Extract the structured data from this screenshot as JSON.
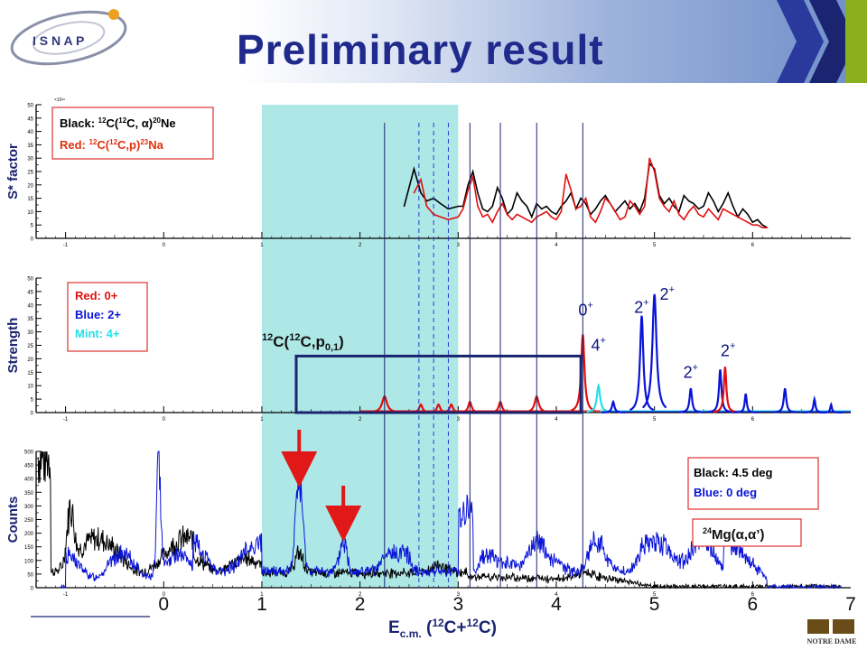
{
  "slide": {
    "title": "Preliminary result",
    "logo_text": "I S N A P"
  },
  "colors": {
    "mint_band": "#aee8e6",
    "black": "#000000",
    "red": "#e01010",
    "blue": "#0a14d8",
    "mint": "#24e0e8",
    "navy": "#1a2470",
    "annotation_red": "#e01818"
  },
  "chart_data": [
    {
      "type": "line",
      "panel": "S* factor",
      "ylabel": "S* factor",
      "y_exponent_label": "×10¹⁶",
      "xlim": [
        -1.3,
        7
      ],
      "ylim": [
        0,
        50
      ],
      "x_ticks": [
        -1,
        0,
        1,
        2,
        3,
        4,
        5,
        6
      ],
      "y_ticks": [
        0,
        5,
        10,
        15,
        20,
        25,
        30,
        35,
        40,
        45,
        50
      ],
      "legend": {
        "placement": "top-left",
        "entries": [
          {
            "color_label": "Black:",
            "reaction": "12C(12C, α)20Ne",
            "pre": "12",
            "mid": "C(",
            "pre2": "12",
            "mid2": "C, α)",
            "post": "20",
            "end": "Ne"
          },
          {
            "color_label": "Red:",
            "pre": "12",
            "mid": "C(",
            "pre2": "12",
            "mid2": "C,p)",
            "post": "23",
            "end": "Na"
          }
        ]
      },
      "series": [
        {
          "name": "12C(12C,α)20Ne",
          "color": "black",
          "x": [
            2.45,
            2.55,
            2.62,
            2.68,
            2.75,
            2.82,
            2.9,
            3.0,
            3.05,
            3.1,
            3.15,
            3.2,
            3.25,
            3.3,
            3.35,
            3.4,
            3.45,
            3.5,
            3.55,
            3.6,
            3.65,
            3.7,
            3.75,
            3.8,
            3.85,
            3.9,
            3.95,
            4.0,
            4.05,
            4.1,
            4.15,
            4.2,
            4.25,
            4.3,
            4.35,
            4.4,
            4.45,
            4.5,
            4.55,
            4.6,
            4.65,
            4.7,
            4.75,
            4.8,
            4.85,
            4.9,
            4.95,
            5.0,
            5.05,
            5.1,
            5.15,
            5.2,
            5.25,
            5.3,
            5.35,
            5.4,
            5.45,
            5.5,
            5.55,
            5.6,
            5.65,
            5.7,
            5.75,
            5.8,
            5.85,
            5.9,
            5.95,
            6.0,
            6.05,
            6.1,
            6.15
          ],
          "y": [
            12,
            26,
            17,
            14,
            15,
            13,
            11,
            12,
            12,
            20,
            25,
            17,
            11,
            10,
            12,
            19,
            15,
            9,
            11,
            17,
            14,
            12,
            8,
            13,
            11,
            12,
            10,
            9,
            12,
            14,
            17,
            11,
            15,
            13,
            9,
            11,
            14,
            16,
            13,
            10,
            12,
            14,
            11,
            13,
            10,
            15,
            28,
            26,
            16,
            13,
            15,
            12,
            10,
            16,
            14,
            13,
            11,
            12,
            17,
            14,
            10,
            13,
            17,
            12,
            8,
            11,
            9,
            6,
            7,
            5,
            4
          ]
        },
        {
          "name": "12C(12C,p)23Na",
          "color": "red",
          "x": [
            2.55,
            2.62,
            2.68,
            2.75,
            2.82,
            2.9,
            3.0,
            3.05,
            3.1,
            3.15,
            3.2,
            3.25,
            3.3,
            3.35,
            3.4,
            3.45,
            3.5,
            3.55,
            3.6,
            3.65,
            3.7,
            3.75,
            3.8,
            3.85,
            3.9,
            3.95,
            4.0,
            4.05,
            4.1,
            4.15,
            4.2,
            4.25,
            4.3,
            4.35,
            4.4,
            4.45,
            4.5,
            4.55,
            4.6,
            4.65,
            4.7,
            4.75,
            4.8,
            4.85,
            4.9,
            4.95,
            5.0,
            5.05,
            5.1,
            5.15,
            5.2,
            5.25,
            5.3,
            5.35,
            5.4,
            5.45,
            5.5,
            5.55,
            5.6,
            5.65,
            5.7,
            5.75,
            5.8,
            5.85,
            5.9,
            5.95,
            6.0,
            6.05,
            6.1,
            6.15
          ],
          "y": [
            17,
            22,
            12,
            9,
            8,
            7,
            8,
            11,
            18,
            23,
            12,
            8,
            9,
            6,
            10,
            13,
            9,
            7,
            9,
            8,
            7,
            6,
            8,
            9,
            10,
            8,
            7,
            10,
            24,
            18,
            11,
            12,
            15,
            8,
            6,
            10,
            15,
            13,
            10,
            7,
            8,
            14,
            12,
            9,
            12,
            30,
            25,
            15,
            12,
            10,
            14,
            9,
            7,
            10,
            12,
            9,
            8,
            11,
            9,
            7,
            11,
            10,
            9,
            8,
            7,
            6,
            5,
            5,
            4,
            4
          ]
        }
      ]
    },
    {
      "type": "line",
      "panel": "Strength",
      "ylabel": "Strength",
      "xlim": [
        -1.3,
        7
      ],
      "ylim": [
        0,
        50
      ],
      "x_ticks": [
        -1,
        0,
        1,
        2,
        3,
        4,
        5,
        6
      ],
      "y_ticks": [
        0,
        5,
        10,
        15,
        20,
        25,
        30,
        35,
        40,
        45,
        50
      ],
      "legend": {
        "placement": "top-left",
        "entries": [
          {
            "label": "Red: 0+",
            "color": "red"
          },
          {
            "label": "Blue: 2+",
            "color": "blue"
          },
          {
            "label": "Mint: 4+",
            "color": "mint"
          }
        ]
      },
      "box_label": {
        "pre": "12",
        "mid": "C(",
        "pre2": "12",
        "mid2": "C,p",
        "sub": "0,1",
        "end": ")"
      },
      "box_x_range": [
        1.35,
        4.25
      ],
      "box_y_range": [
        0,
        21
      ],
      "peaks": [
        {
          "x": 2.25,
          "height": 6,
          "width": 0.03,
          "color": "red"
        },
        {
          "x": 2.62,
          "height": 3,
          "width": 0.02,
          "color": "red"
        },
        {
          "x": 2.8,
          "height": 3,
          "width": 0.02,
          "color": "red"
        },
        {
          "x": 2.93,
          "height": 3,
          "width": 0.02,
          "color": "red"
        },
        {
          "x": 3.12,
          "height": 4,
          "width": 0.02,
          "color": "red"
        },
        {
          "x": 3.43,
          "height": 4,
          "width": 0.02,
          "color": "red"
        },
        {
          "x": 3.8,
          "height": 6,
          "width": 0.025,
          "color": "red"
        },
        {
          "x": 4.27,
          "height": 29,
          "width": 0.02,
          "color": "red"
        },
        {
          "x": 4.43,
          "height": 10,
          "width": 0.02,
          "color": "mint"
        },
        {
          "x": 4.58,
          "height": 4,
          "width": 0.015,
          "color": "blue"
        },
        {
          "x": 4.87,
          "height": 36,
          "width": 0.02,
          "color": "blue"
        },
        {
          "x": 5.0,
          "height": 44,
          "width": 0.025,
          "color": "blue"
        },
        {
          "x": 5.37,
          "height": 9,
          "width": 0.015,
          "color": "blue"
        },
        {
          "x": 5.67,
          "height": 16,
          "width": 0.015,
          "color": "blue"
        },
        {
          "x": 5.72,
          "height": 17,
          "width": 0.015,
          "color": "red"
        },
        {
          "x": 5.93,
          "height": 7,
          "width": 0.012,
          "color": "blue"
        },
        {
          "x": 6.33,
          "height": 9,
          "width": 0.015,
          "color": "blue"
        },
        {
          "x": 6.63,
          "height": 5,
          "width": 0.012,
          "color": "blue"
        },
        {
          "x": 6.8,
          "height": 3,
          "width": 0.01,
          "color": "blue"
        }
      ],
      "peak_labels": [
        {
          "text": "0",
          "sup": "+",
          "x": 4.3,
          "y": 36,
          "color": "blue"
        },
        {
          "text": "4",
          "sup": "+",
          "x": 4.43,
          "y": 23,
          "color": "blue"
        },
        {
          "text": "2",
          "sup": "+",
          "x": 4.87,
          "y": 37,
          "color": "blue"
        },
        {
          "text": "2",
          "sup": "+",
          "x": 5.13,
          "y": 42,
          "color": "blue"
        },
        {
          "text": "2",
          "sup": "+",
          "x": 5.75,
          "y": 21,
          "color": "blue"
        },
        {
          "text": "2",
          "sup": "+",
          "x": 5.37,
          "y": 13,
          "color": "blue"
        }
      ]
    },
    {
      "type": "line",
      "panel": "Counts",
      "ylabel": "Counts",
      "xlabel": {
        "main": "E",
        "sub": "c.m.",
        "mid": " (",
        "pre": "12",
        "mid2": "C+",
        "pre2": "12",
        "end": "C)"
      },
      "xlim": [
        -1.3,
        7
      ],
      "ylim": [
        0,
        500
      ],
      "x_ticks": [
        -1,
        0,
        1,
        2,
        3,
        4,
        5,
        6
      ],
      "x_ticks_large": [
        0,
        1,
        2,
        3,
        4,
        5,
        6,
        7
      ],
      "y_ticks": [
        0,
        50,
        100,
        150,
        200,
        250,
        300,
        350,
        400,
        450,
        500
      ],
      "legend": {
        "placement": "top-right",
        "entries": [
          {
            "label": "Black: 4.5 deg",
            "color": "black"
          },
          {
            "label": "Blue:   0 deg",
            "color": "blue"
          }
        ]
      },
      "reaction_label": {
        "pre": "24",
        "main": "Mg(α,α’)"
      },
      "arrows_at_x": [
        1.38,
        1.83
      ]
    }
  ],
  "shaded_band": {
    "x_range": [
      1.0,
      3.0
    ]
  },
  "vertical_lines": {
    "solid": [
      2.25,
      3.12,
      3.43,
      3.8,
      4.27
    ],
    "dashed": [
      2.6,
      2.75,
      2.9
    ]
  }
}
